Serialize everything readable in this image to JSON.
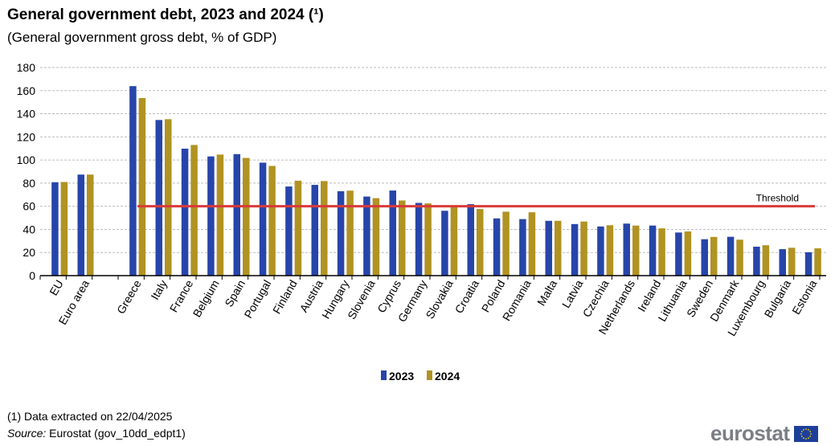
{
  "chart_data": {
    "type": "bar",
    "title": "General government debt, 2023 and 2024 (¹)",
    "subtitle": "(General government  gross debt, % of GDP)",
    "xlabel": "",
    "ylabel": "",
    "ylim": [
      0,
      180
    ],
    "yticks": [
      0,
      20,
      40,
      60,
      80,
      100,
      120,
      140,
      160,
      180
    ],
    "grid": true,
    "legend_position": "bottom-center",
    "categories": [
      "EU",
      "Euro area",
      "",
      "Greece",
      "Italy",
      "France",
      "Belgium",
      "Spain",
      "Portugal",
      "Finland",
      "Austria",
      "Hungary",
      "Slovenia",
      "Cyprus",
      "Germany",
      "Slovakia",
      "Croatia",
      "Poland",
      "Romania",
      "Malta",
      "Latvia",
      "Czechia",
      "Netherlands",
      "Ireland",
      "Lithuania",
      "Sweden",
      "Denmark",
      "Luxembourg",
      "Bulgaria",
      "Estonia"
    ],
    "series": [
      {
        "name": "2023",
        "color": "#2745a9",
        "values": [
          80.8,
          87.4,
          null,
          163.9,
          134.6,
          109.8,
          103.1,
          105.1,
          97.7,
          77.1,
          78.5,
          73.0,
          68.4,
          73.6,
          62.9,
          56.1,
          61.8,
          49.5,
          48.9,
          47.4,
          44.6,
          42.5,
          45.0,
          43.3,
          37.3,
          31.5,
          33.6,
          25.0,
          22.9,
          20.2
        ]
      },
      {
        "name": "2024",
        "color": "#b09322",
        "values": [
          81.0,
          87.4,
          null,
          153.6,
          135.3,
          113.0,
          104.7,
          101.8,
          94.9,
          82.1,
          81.8,
          73.5,
          67.0,
          65.0,
          62.5,
          59.3,
          57.6,
          55.3,
          54.8,
          47.4,
          46.8,
          43.6,
          43.3,
          40.9,
          38.2,
          33.5,
          31.1,
          26.3,
          24.1,
          23.6
        ]
      }
    ],
    "annotations": [
      {
        "type": "hline",
        "value": 60,
        "label": "Threshold",
        "color": "#d93a3a"
      }
    ]
  },
  "footnote": "(1) Data extracted  on 22/04/2025",
  "source_label": "Source:",
  "source_text": " Eurostat (gov_10dd_edpt1)",
  "logo": "eurostat"
}
